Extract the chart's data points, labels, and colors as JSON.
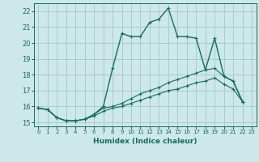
{
  "xlabel": "Humidex (Indice chaleur)",
  "bg_color": "#cce8e8",
  "grid_color": "#aacccc",
  "line_color": "#1a6b5a",
  "xlabel_bg": "#5a9a9a",
  "xlim": [
    -0.5,
    23.5
  ],
  "ylim": [
    14.75,
    22.5
  ],
  "xticks": [
    0,
    1,
    2,
    3,
    4,
    5,
    6,
    7,
    8,
    9,
    10,
    11,
    12,
    13,
    14,
    15,
    16,
    17,
    18,
    19,
    20,
    21,
    22,
    23
  ],
  "yticks": [
    15,
    16,
    17,
    18,
    19,
    20,
    21,
    22
  ],
  "line1_x": [
    0,
    1,
    2,
    3,
    4,
    5,
    6,
    7,
    8,
    9,
    10,
    11,
    12,
    13,
    14,
    15,
    16,
    17,
    18,
    19,
    20,
    21,
    22
  ],
  "line1_y": [
    15.9,
    15.8,
    15.3,
    15.1,
    15.1,
    15.2,
    15.5,
    16.0,
    18.4,
    20.6,
    20.4,
    20.4,
    21.3,
    21.5,
    22.2,
    20.4,
    20.4,
    20.3,
    18.3,
    20.3,
    17.9,
    17.6,
    16.3
  ],
  "line2_x": [
    0,
    1,
    2,
    3,
    4,
    5,
    6,
    7,
    8,
    9,
    10,
    11,
    12,
    13,
    14,
    15,
    16,
    17,
    18,
    19,
    20,
    21,
    22
  ],
  "line2_y": [
    15.9,
    15.8,
    15.3,
    15.1,
    15.1,
    15.2,
    15.5,
    15.9,
    16.0,
    16.2,
    16.5,
    16.8,
    17.0,
    17.2,
    17.5,
    17.7,
    17.9,
    18.1,
    18.3,
    18.4,
    17.9,
    17.6,
    16.3
  ],
  "line3_x": [
    0,
    1,
    2,
    3,
    4,
    5,
    6,
    7,
    8,
    9,
    10,
    11,
    12,
    13,
    14,
    15,
    16,
    17,
    18,
    19,
    20,
    21,
    22
  ],
  "line3_y": [
    15.9,
    15.8,
    15.3,
    15.1,
    15.1,
    15.2,
    15.4,
    15.7,
    15.9,
    16.0,
    16.2,
    16.4,
    16.6,
    16.8,
    17.0,
    17.1,
    17.3,
    17.5,
    17.6,
    17.8,
    17.4,
    17.1,
    16.3
  ]
}
